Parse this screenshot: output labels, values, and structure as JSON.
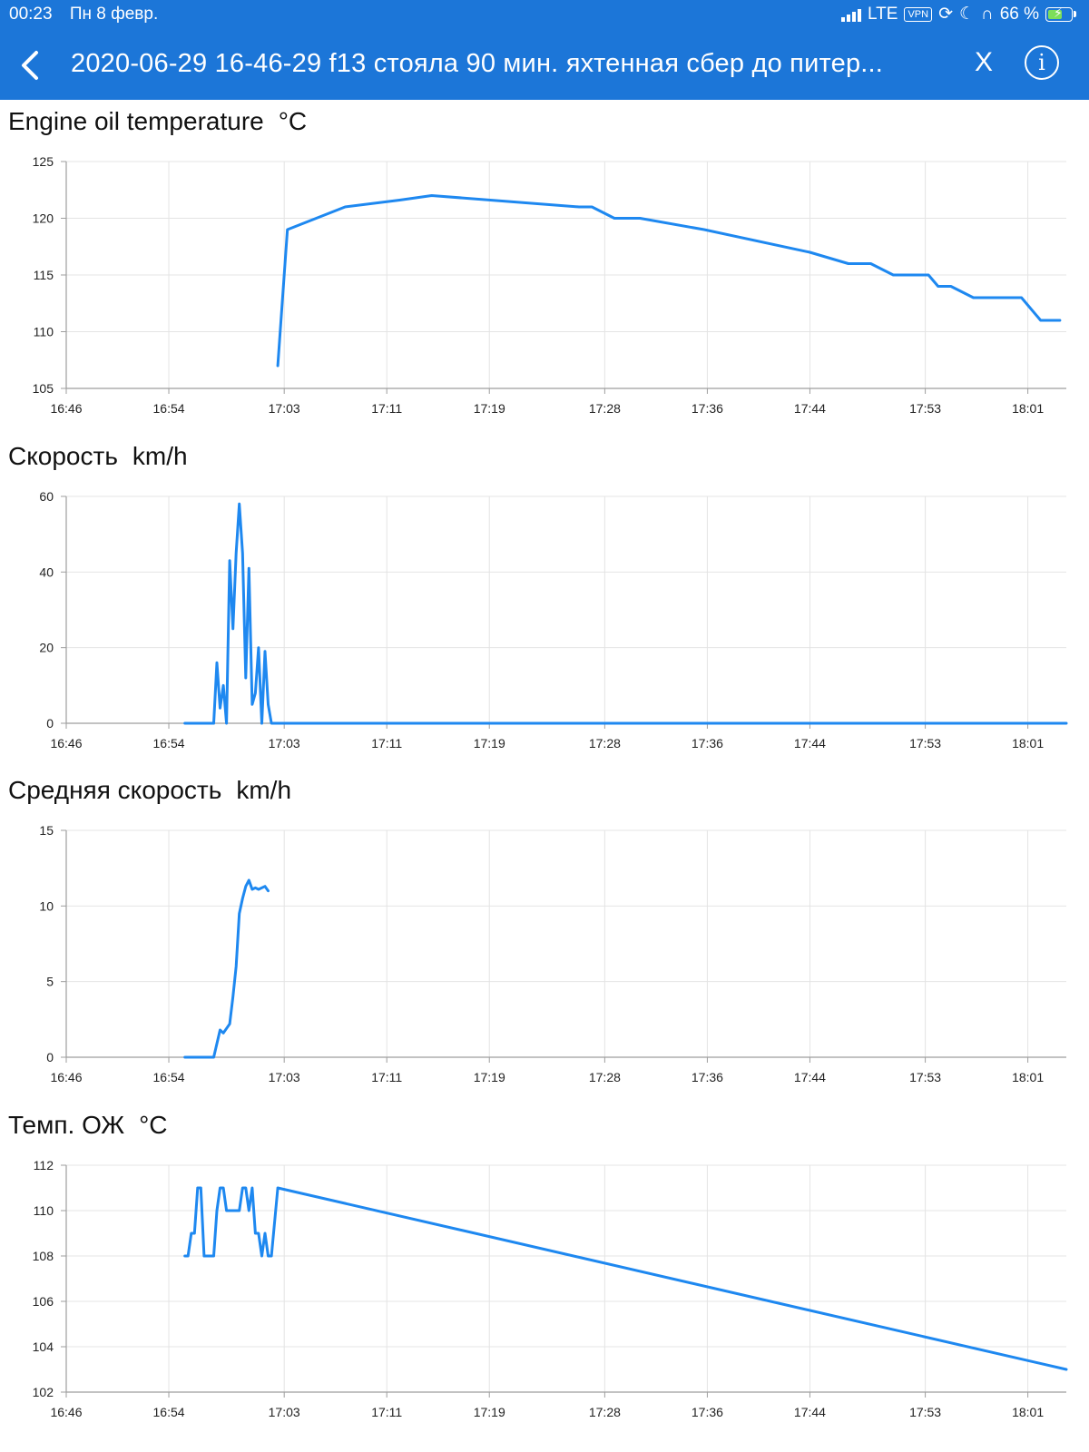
{
  "status_bar": {
    "time": "00:23",
    "date": "Пн 8 февр.",
    "network": "LTE",
    "vpn": "VPN",
    "battery": "66 %",
    "battery_level": 0.66
  },
  "header": {
    "back_icon": "chevron-left-icon",
    "title": "2020-06-29 16-46-29  f13 стояла 90 мин. яхтенная сбер до питер...",
    "close_label": "X",
    "info_label": "i",
    "background": "#1c76d8"
  },
  "colors": {
    "line": "#1e88f0",
    "grid": "#e4e4e4",
    "axis": "#9e9e9e"
  },
  "chart_data": [
    {
      "type": "line",
      "title": "Engine oil temperature",
      "unit": "°C",
      "xlabel": "",
      "ylabel": "",
      "x_ticks": [
        "16:46",
        "16:54",
        "17:03",
        "17:11",
        "17:19",
        "17:28",
        "17:36",
        "17:44",
        "17:53",
        "18:01"
      ],
      "xlim": [
        "16:46",
        "18:04"
      ],
      "ylim": [
        105,
        125
      ],
      "y_ticks": [
        105,
        110,
        115,
        120,
        125
      ],
      "grid": true,
      "series": [
        {
          "x": [
            "17:02:30",
            "17:03:15",
            "17:07:45",
            "17:12:00",
            "17:14:30",
            "17:26:00",
            "17:27:00",
            "17:28:45",
            "17:30:45",
            "17:35:45",
            "17:44:00",
            "17:47:00",
            "17:48:45",
            "17:50:30",
            "17:52:15",
            "17:53:15",
            "17:54:00",
            "17:55:00",
            "17:56:45",
            "18:00:30",
            "18:02:00",
            "18:03:30"
          ],
          "y": [
            107,
            119,
            121,
            121.6,
            122,
            121,
            121,
            120,
            120,
            119,
            117,
            116,
            116,
            115,
            115,
            115,
            114,
            114,
            113,
            113,
            111,
            111
          ]
        }
      ]
    },
    {
      "type": "line",
      "title": "Скорость",
      "unit": "km/h",
      "xlabel": "",
      "ylabel": "",
      "x_ticks": [
        "16:46",
        "16:54",
        "17:03",
        "17:11",
        "17:19",
        "17:28",
        "17:36",
        "17:44",
        "17:53",
        "18:01"
      ],
      "xlim": [
        "16:46",
        "18:04"
      ],
      "ylim": [
        0,
        60
      ],
      "y_ticks": [
        0,
        20,
        40,
        60
      ],
      "grid": true,
      "series": [
        {
          "x": [
            "16:55:15",
            "16:57:30",
            "16:57:45",
            "16:58:00",
            "16:58:15",
            "16:58:30",
            "16:58:45",
            "16:59:00",
            "16:59:15",
            "16:59:30",
            "16:59:45",
            "17:00:00",
            "17:00:15",
            "17:00:30",
            "17:00:45",
            "17:01:00",
            "17:01:15",
            "17:01:30",
            "17:01:45",
            "17:02:00",
            "17:02:15",
            "17:03:00",
            "18:04:00"
          ],
          "y": [
            0,
            0,
            16,
            4,
            10,
            0,
            43,
            25,
            45,
            58,
            45,
            12,
            41,
            5,
            8,
            20,
            0,
            19,
            5,
            0,
            0,
            0,
            0
          ]
        }
      ]
    },
    {
      "type": "line",
      "title": "Средняя скорость",
      "unit": "km/h",
      "xlabel": "",
      "ylabel": "",
      "x_ticks": [
        "16:46",
        "16:54",
        "17:03",
        "17:11",
        "17:19",
        "17:28",
        "17:36",
        "17:44",
        "17:53",
        "18:01"
      ],
      "xlim": [
        "16:46",
        "18:04"
      ],
      "ylim": [
        0,
        15
      ],
      "y_ticks": [
        0,
        5,
        10,
        15
      ],
      "grid": true,
      "series": [
        {
          "x": [
            "16:55:15",
            "16:57:30",
            "16:58:00",
            "16:58:15",
            "16:58:45",
            "16:59:00",
            "16:59:15",
            "16:59:30",
            "16:59:45",
            "17:00:00",
            "17:00:15",
            "17:00:30",
            "17:00:45",
            "17:01:00",
            "17:01:30",
            "17:01:45"
          ],
          "y": [
            0,
            0,
            1.8,
            1.6,
            2.2,
            4,
            6,
            9.5,
            10.5,
            11.3,
            11.7,
            11.1,
            11.2,
            11.1,
            11.3,
            11
          ]
        }
      ]
    },
    {
      "type": "line",
      "title": "Темп. ОЖ",
      "unit": "°C",
      "xlabel": "",
      "ylabel": "",
      "x_ticks": [
        "16:46",
        "16:54",
        "17:03",
        "17:11",
        "17:19",
        "17:28",
        "17:36",
        "17:44",
        "17:53",
        "18:01"
      ],
      "xlim": [
        "16:46",
        "18:04"
      ],
      "ylim": [
        102,
        112
      ],
      "y_ticks": [
        102,
        104,
        106,
        108,
        110,
        112
      ],
      "grid": true,
      "series": [
        {
          "x": [
            "16:55:15",
            "16:55:30",
            "16:55:45",
            "16:56:00",
            "16:56:15",
            "16:56:30",
            "16:56:45",
            "16:57:00",
            "16:57:15",
            "16:57:30",
            "16:57:45",
            "16:58:00",
            "16:58:15",
            "16:58:30",
            "16:58:45",
            "16:59:00",
            "16:59:15",
            "16:59:30",
            "16:59:45",
            "17:00:00",
            "17:00:15",
            "17:00:30",
            "17:00:45",
            "17:01:00",
            "17:01:15",
            "17:01:30",
            "17:01:45",
            "17:02:00",
            "17:02:30",
            "18:04:00"
          ],
          "y": [
            108,
            108,
            109,
            109,
            111,
            111,
            108,
            108,
            108,
            108,
            110,
            111,
            111,
            110,
            110,
            110,
            110,
            110,
            111,
            111,
            110,
            111,
            109,
            109,
            108,
            109,
            108,
            108,
            111,
            103
          ]
        }
      ]
    }
  ]
}
